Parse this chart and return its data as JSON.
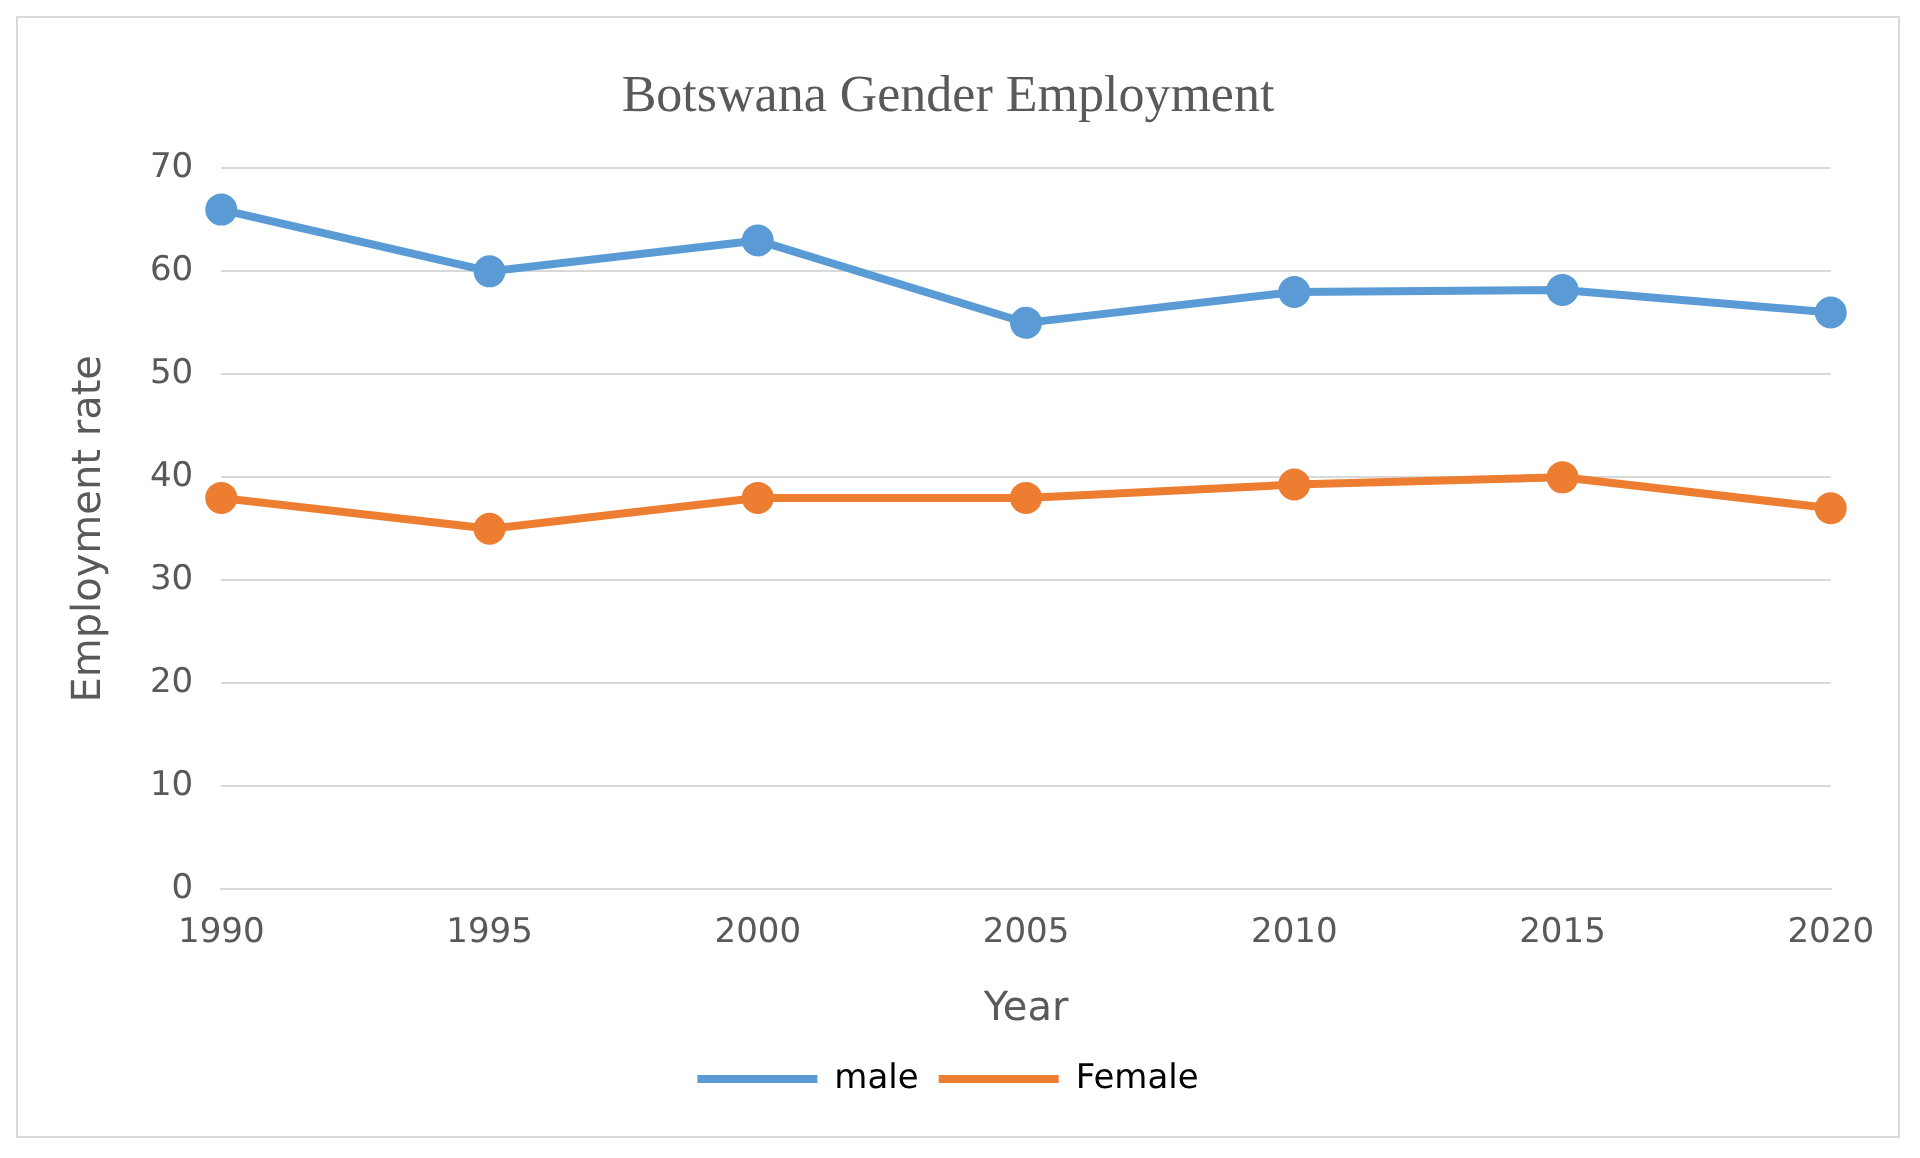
{
  "chart_data": {
    "type": "line",
    "title": "Botswana Gender Employment",
    "xlabel": "Year",
    "ylabel": "Employment rate",
    "categories": [
      "1990",
      "1995",
      "2000",
      "2005",
      "2010",
      "2015",
      "2020"
    ],
    "series": [
      {
        "name": "male",
        "color": "#5b9bd5",
        "values": [
          66,
          60,
          63,
          55,
          58,
          58.2,
          56
        ]
      },
      {
        "name": "Female",
        "color": "#ed7d31",
        "values": [
          38,
          35,
          38,
          38,
          39.3,
          40,
          37
        ]
      }
    ],
    "ylim": [
      0,
      70
    ],
    "yticks": [
      0,
      10,
      20,
      30,
      40,
      50,
      60,
      70
    ],
    "grid": "y",
    "legend": "bottom",
    "marker": "circle",
    "line_style": "solid"
  }
}
